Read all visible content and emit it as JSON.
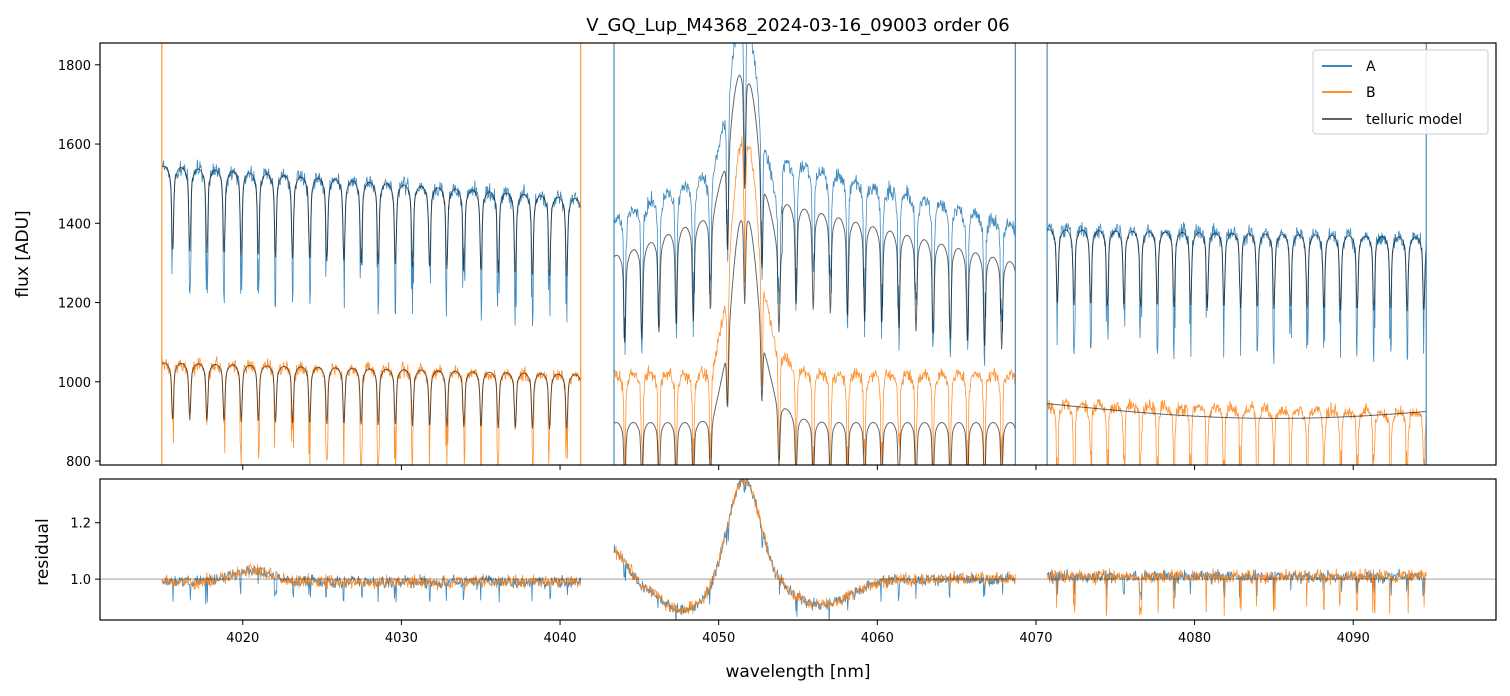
{
  "chart_data": [
    {
      "type": "line",
      "title": "V_GQ_Lup_M4368_2024-03-16_09003  order 06",
      "xlabel": "",
      "ylabel": "flux [ADU]",
      "xlim": [
        4011,
        4099
      ],
      "ylim": [
        790,
        1855
      ],
      "yticks": [
        800,
        1000,
        1200,
        1400,
        1600,
        1800
      ],
      "ytick_labels": [
        "800",
        "1000",
        "1200",
        "1400",
        "1600",
        "1800"
      ],
      "legend_position": "top-right",
      "legend": [
        "A",
        "B",
        "telluric model"
      ],
      "segments": [
        {
          "x_start": 4014.9,
          "x_end": 4041.3,
          "A_start": 1545,
          "A_end": 1462,
          "B_start": 1048,
          "B_end": 1018
        },
        {
          "x_start": 4043.4,
          "x_end": 4068.7,
          "A_start": 1410,
          "A_end": 1395,
          "B_start": 1025,
          "B_end": 998
        },
        {
          "x_start": 4070.7,
          "x_end": 4094.6,
          "A_start": 1390,
          "A_end": 1365,
          "B_start": 945,
          "B_end": 925
        }
      ],
      "emission_peak": {
        "center": 4051.6,
        "A_peak": 1850,
        "B_peak": 1600
      },
      "series": [
        {
          "name": "A",
          "color": "#1f77b4"
        },
        {
          "name": "B",
          "color": "#ff7f0e"
        },
        {
          "name": "telluric model",
          "color": "#4d4d4d"
        }
      ]
    },
    {
      "type": "line",
      "title": "",
      "xlabel": "wavelength [nm]",
      "ylabel": "residual",
      "xlim": [
        4011,
        4099
      ],
      "ylim": [
        0.855,
        1.355
      ],
      "yticks": [
        1.0,
        1.2
      ],
      "ytick_labels": [
        "1.0",
        "1.2"
      ],
      "xticks": [
        4020,
        4030,
        4040,
        4050,
        4060,
        4070,
        4080,
        4090
      ],
      "xtick_labels": [
        "4020",
        "4030",
        "4040",
        "4050",
        "4060",
        "4070",
        "4080",
        "4090"
      ],
      "reference_line": 1.0,
      "series": [
        {
          "name": "A",
          "color": "#1f77b4"
        },
        {
          "name": "B",
          "color": "#ff7f0e"
        }
      ]
    }
  ]
}
